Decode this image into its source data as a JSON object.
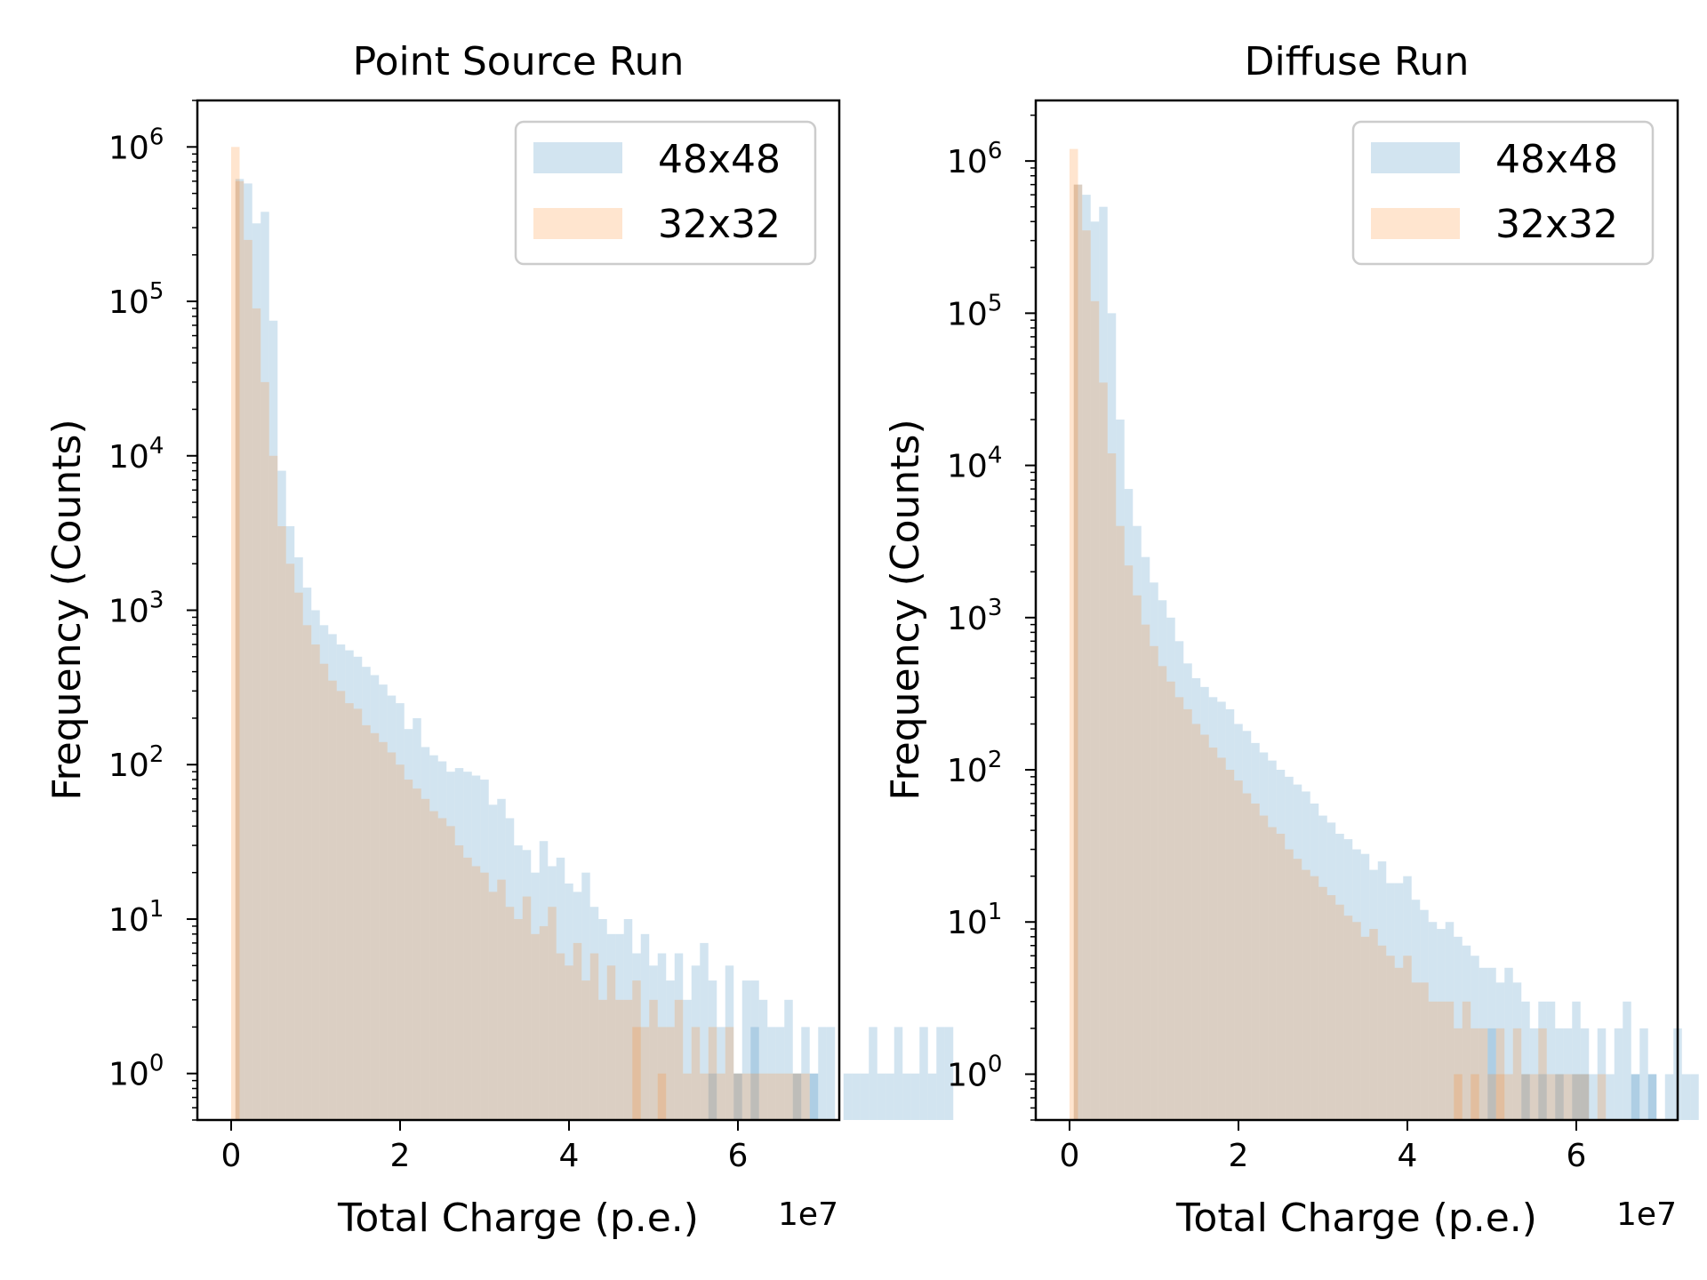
{
  "chart_data": [
    {
      "type": "histogram",
      "title": "Point Source Run",
      "xlabel": "Total Charge (p.e.)",
      "ylabel": "Frequency (Counts)",
      "x_offset_label": "1e7",
      "xlim": [
        -0.4,
        7.2
      ],
      "xticks": [
        0,
        2,
        4,
        6
      ],
      "yscale": "log",
      "ylim": [
        0.5,
        2000000
      ],
      "yticks": [
        1,
        10,
        100,
        1000,
        10000,
        100000,
        1000000
      ],
      "ytick_labels": [
        [
          "10",
          "0"
        ],
        [
          "10",
          "1"
        ],
        [
          "10",
          "2"
        ],
        [
          "10",
          "3"
        ],
        [
          "10",
          "4"
        ],
        [
          "10",
          "5"
        ],
        [
          "10",
          "6"
        ]
      ],
      "legend_position": "upper right",
      "bin_width": 0.1,
      "series": [
        {
          "name": "48x48",
          "color": "#1f77b4",
          "alpha": 0.2,
          "x_start": 0.05,
          "counts": [
            620000,
            580000,
            320000,
            380000,
            75000,
            8000,
            3500,
            2200,
            1400,
            1000,
            800,
            700,
            600,
            550,
            500,
            430,
            380,
            330,
            280,
            250,
            170,
            200,
            130,
            115,
            105,
            90,
            95,
            90,
            85,
            80,
            55,
            60,
            45,
            30,
            28,
            20,
            32,
            22,
            25,
            17,
            15,
            20,
            12,
            10,
            8,
            8,
            10,
            6,
            8,
            5,
            6,
            4,
            6,
            3,
            5,
            7,
            4,
            2,
            5,
            1,
            4,
            4,
            3,
            2,
            2,
            3,
            1,
            2,
            1,
            2,
            2,
            0,
            1,
            1,
            1,
            2,
            1,
            1,
            2,
            1,
            1,
            2,
            1,
            2,
            2,
            0,
            0,
            0,
            0,
            0,
            0,
            0,
            0,
            0,
            0,
            0,
            0,
            0,
            0,
            0,
            0,
            0,
            0,
            0,
            0,
            0,
            0,
            0,
            0,
            0,
            0,
            0,
            0,
            0,
            0,
            0,
            0,
            0,
            0,
            0,
            0,
            0,
            0,
            0,
            0,
            0,
            0,
            0,
            0,
            0,
            0
          ],
          "tail_bins": [
            [
              5.65,
              1
            ],
            [
              5.95,
              1
            ],
            [
              6.15,
              2
            ],
            [
              6.65,
              1
            ],
            [
              6.85,
              1
            ]
          ]
        },
        {
          "name": "32x32",
          "color": "#ff7f0e",
          "alpha": 0.2,
          "x_start": 0.05,
          "counts": [
            600000,
            250000,
            90000,
            30000,
            10000,
            3500,
            2000,
            1300,
            800,
            600,
            450,
            350,
            300,
            250,
            230,
            180,
            160,
            140,
            120,
            100,
            80,
            70,
            60,
            50,
            45,
            40,
            30,
            25,
            22,
            20,
            15,
            18,
            12,
            10,
            14,
            8,
            9,
            12,
            6,
            5,
            7,
            4,
            6,
            3,
            5,
            3,
            3,
            4,
            2,
            3,
            2,
            2,
            3,
            1,
            2,
            1,
            2,
            1,
            2,
            1,
            1,
            1,
            1,
            1,
            1,
            1,
            1,
            1,
            0,
            0,
            0,
            0,
            0,
            0,
            0,
            0,
            0,
            0,
            0,
            0,
            0,
            0,
            0,
            0,
            0,
            0,
            0,
            0,
            0,
            0,
            0,
            0,
            0,
            0,
            0,
            0,
            0,
            0,
            0,
            0,
            0,
            0,
            0,
            0,
            0,
            0,
            0,
            0,
            0,
            0,
            0,
            0,
            0,
            0,
            0,
            0,
            0,
            0,
            0,
            0,
            0,
            0,
            0,
            0,
            0,
            0,
            0,
            0,
            0,
            0
          ],
          "tail_bins": [
            [
              0.0,
              1000000
            ],
            [
              4.75,
              2
            ],
            [
              5.05,
              1
            ]
          ]
        }
      ]
    },
    {
      "type": "histogram",
      "title": "Diffuse Run",
      "xlabel": "Total Charge (p.e.)",
      "ylabel": "Frequency (Counts)",
      "x_offset_label": "1e7",
      "xlim": [
        -0.4,
        7.2
      ],
      "xticks": [
        0,
        2,
        4,
        6
      ],
      "yscale": "log",
      "ylim": [
        0.5,
        2500000
      ],
      "yticks": [
        1,
        10,
        100,
        1000,
        10000,
        100000,
        1000000
      ],
      "ytick_labels": [
        [
          "10",
          "0"
        ],
        [
          "10",
          "1"
        ],
        [
          "10",
          "2"
        ],
        [
          "10",
          "3"
        ],
        [
          "10",
          "4"
        ],
        [
          "10",
          "5"
        ],
        [
          "10",
          "6"
        ]
      ],
      "legend_position": "upper right",
      "bin_width": 0.1,
      "series": [
        {
          "name": "48x48",
          "color": "#1f77b4",
          "alpha": 0.2,
          "x_start": 0.05,
          "counts": [
            700000,
            600000,
            400000,
            500000,
            100000,
            20000,
            7000,
            4000,
            2500,
            1700,
            1300,
            1000,
            700,
            500,
            400,
            350,
            300,
            280,
            250,
            200,
            180,
            150,
            130,
            115,
            100,
            90,
            80,
            72,
            60,
            50,
            45,
            38,
            35,
            30,
            28,
            22,
            25,
            18,
            18,
            20,
            14,
            12,
            10,
            9,
            10,
            8,
            7,
            6,
            5,
            5,
            4,
            5,
            4,
            3,
            2,
            3,
            3,
            2,
            2,
            3,
            2,
            1,
            2,
            1,
            2,
            3,
            1,
            2,
            1,
            0,
            1,
            2,
            1,
            1,
            0,
            1,
            1,
            0,
            1,
            1,
            0,
            0,
            0,
            0,
            0,
            0,
            0,
            0,
            0,
            0,
            0,
            0,
            0,
            0,
            0,
            0,
            0,
            0,
            0,
            0,
            0,
            0,
            0,
            0,
            0,
            0,
            0,
            0,
            0,
            0,
            0,
            0,
            0,
            0,
            0,
            0,
            0,
            0,
            0,
            0,
            0,
            0,
            0,
            0,
            0,
            0,
            0,
            0,
            0,
            0,
            0
          ],
          "tail_bins": [
            [
              4.95,
              2
            ],
            [
              5.35,
              1
            ],
            [
              5.55,
              1
            ],
            [
              5.75,
              1
            ],
            [
              5.95,
              1
            ],
            [
              6.05,
              1
            ],
            [
              6.65,
              1
            ],
            [
              6.85,
              1
            ]
          ]
        },
        {
          "name": "32x32",
          "color": "#ff7f0e",
          "alpha": 0.2,
          "x_start": 0.05,
          "counts": [
            700000,
            350000,
            120000,
            35000,
            12000,
            4000,
            2200,
            1400,
            900,
            650,
            480,
            380,
            300,
            250,
            200,
            170,
            140,
            120,
            100,
            85,
            70,
            60,
            50,
            42,
            38,
            30,
            26,
            22,
            20,
            17,
            15,
            13,
            11,
            10,
            8,
            9,
            7,
            6,
            5,
            6,
            4,
            4,
            3,
            3,
            3,
            2,
            3,
            2,
            2,
            1,
            2,
            1,
            2,
            1,
            1,
            2,
            1,
            1,
            1,
            1,
            1,
            0,
            1,
            0,
            0,
            0,
            0,
            0,
            0,
            0,
            0,
            0,
            0,
            0,
            0,
            0,
            0,
            0,
            0,
            0,
            0,
            0,
            0,
            0,
            0,
            0,
            0,
            0,
            0,
            0,
            0,
            0,
            0,
            0,
            0,
            0,
            0,
            0,
            0,
            0,
            0,
            0,
            0,
            0,
            0,
            0,
            0,
            0,
            0,
            0,
            0,
            0,
            0,
            0,
            0,
            0,
            0,
            0,
            0,
            0,
            0,
            0,
            0,
            0,
            0,
            0,
            0,
            0,
            0,
            0,
            0
          ],
          "tail_bins": [
            [
              0.0,
              1200000
            ],
            [
              4.55,
              1
            ],
            [
              4.75,
              1
            ],
            [
              5.05,
              1
            ]
          ]
        }
      ]
    }
  ]
}
